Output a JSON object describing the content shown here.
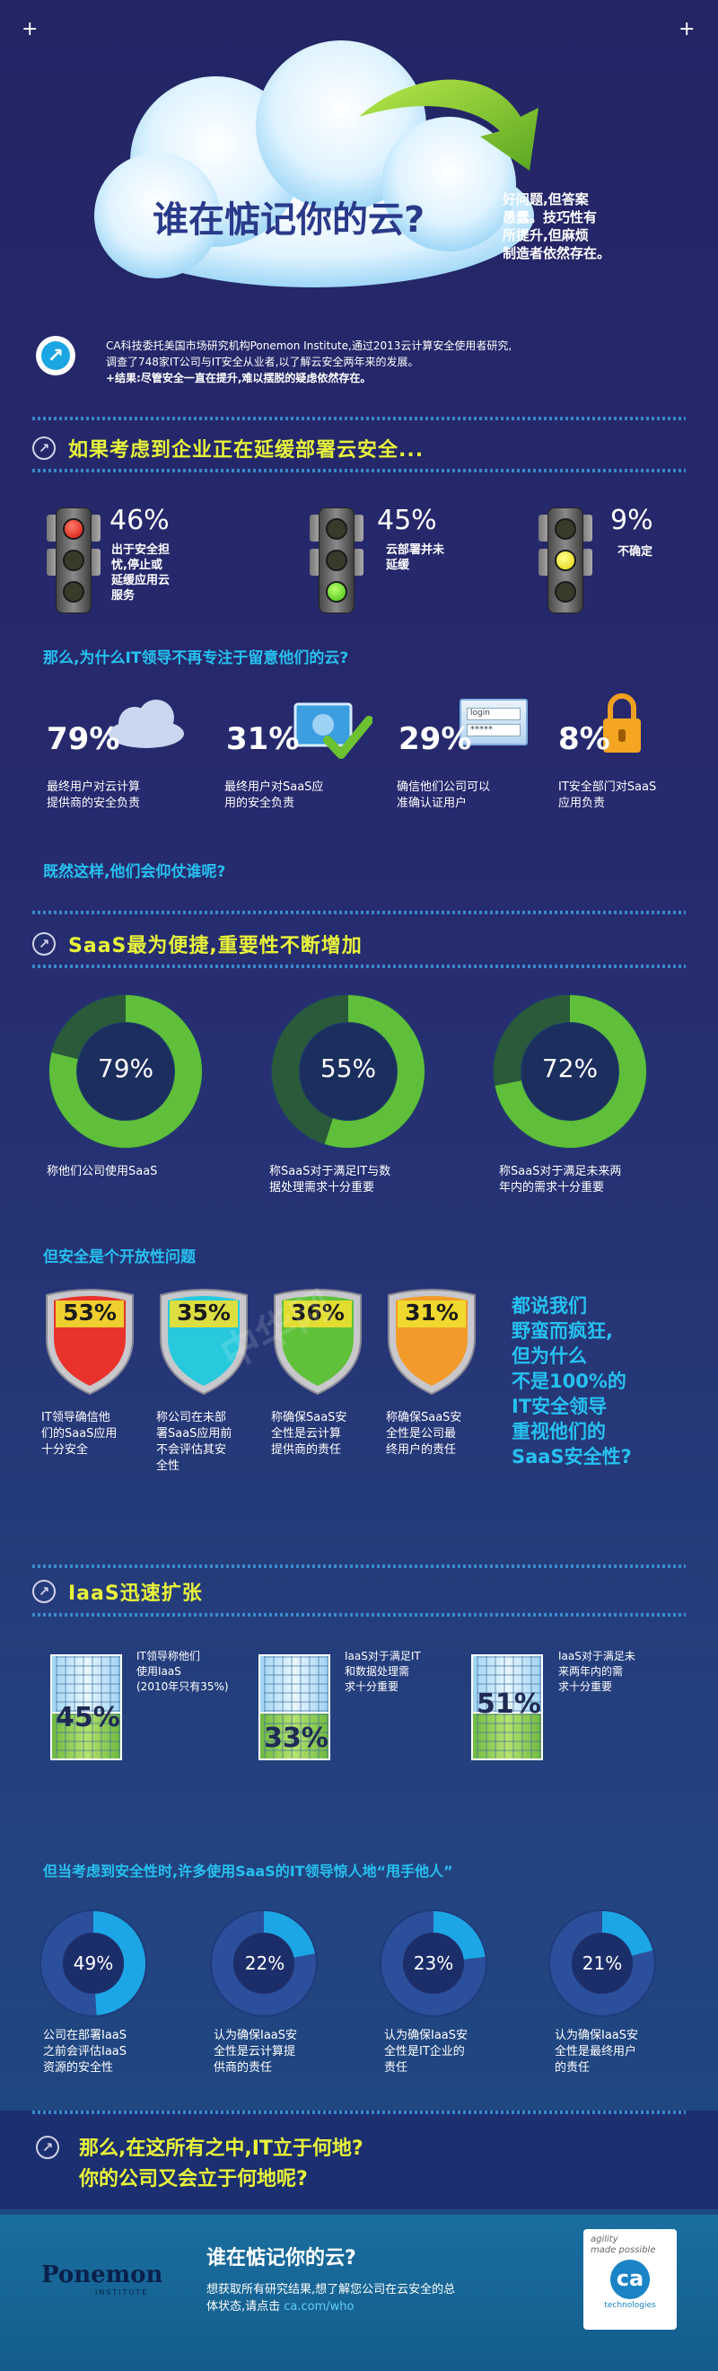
{
  "header": {
    "title": "谁在惦记你的云?",
    "side_text": [
      "好问题,但答案",
      "愚蠢。技巧性有",
      "所提升,但麻烦",
      "制造者依然存在。"
    ],
    "intro_lines": [
      "CA科技委托美国市场研究机构Ponemon Institute,通过2013云计算安全使用者研究,",
      "调查了748家IT公司与IT安全从业者,以了解云安全两年来的发展。"
    ],
    "intro_result": "+结果:尽管安全一直在提升,难以摆脱的疑虑依然存在。"
  },
  "section1": {
    "title": "如果考虑到企业正在延缓部署云安全...",
    "lights": [
      {
        "pct": "46%",
        "desc": [
          "出于安全担",
          "忧,停止或",
          "延缓应用云",
          "服务"
        ]
      },
      {
        "pct": "45%",
        "desc": [
          "云部署并未",
          "延缓"
        ]
      },
      {
        "pct": "9%",
        "desc": [
          "不确定"
        ]
      }
    ],
    "question": "那么,为什么IT领导不再专注于留意他们的云?",
    "stats": [
      {
        "pct": "79%",
        "desc": [
          "最终用户对云计算",
          "提供商的安全负责"
        ]
      },
      {
        "pct": "31%",
        "desc": [
          "最终用户对SaaS应",
          "用的安全负责"
        ]
      },
      {
        "pct": "29%",
        "desc": [
          "确信他们公司可以",
          "准确认证用户"
        ]
      },
      {
        "pct": "8%",
        "desc": [
          "IT安全部门对SaaS",
          "应用负责"
        ]
      }
    ],
    "login_word": "login",
    "password_mask": "*****",
    "question2": "既然这样,他们会仰仗谁呢?"
  },
  "section2": {
    "title": "SaaS最为便捷,重要性不断增加",
    "donuts": [
      {
        "label": "79%",
        "value": 79,
        "desc": [
          "称他们公司使用SaaS"
        ]
      },
      {
        "label": "55%",
        "value": 55,
        "desc": [
          "称SaaS对于满足IT与数",
          "据处理需求十分重要"
        ]
      },
      {
        "label": "72%",
        "value": 72,
        "desc": [
          "称SaaS对于满足未来两",
          "年内的需求十分重要"
        ]
      }
    ],
    "question": "但安全是个开放性问题",
    "shields": [
      {
        "pct": "53%",
        "value": 53,
        "color": "#e8322b",
        "desc": [
          "IT领导确信他",
          "们的SaaS应用",
          "十分安全"
        ]
      },
      {
        "pct": "35%",
        "value": 35,
        "color": "#28c9dd",
        "desc": [
          "称公司在未部",
          "署SaaS应用前",
          "不会评估其安",
          "全性"
        ]
      },
      {
        "pct": "36%",
        "value": 36,
        "color": "#5fc13a",
        "desc": [
          "称确保SaaS安",
          "全性是云计算",
          "提供商的责任"
        ]
      },
      {
        "pct": "31%",
        "value": 31,
        "color": "#f29a2a",
        "desc": [
          "称确保SaaS安",
          "全性是公司最",
          "终用户的责任"
        ]
      }
    ],
    "callout": [
      "都说我们",
      "野蛮而疯狂,",
      "但为什么",
      "不是100%的",
      "IT安全领导",
      "重视他们的",
      "SaaS安全性?"
    ]
  },
  "section3": {
    "title": "IaaS迅速扩张",
    "buildings": [
      {
        "pct": "45%",
        "value": 45,
        "desc": [
          "IT领导称他们",
          "使用IaaS",
          "(2010年只有35%)"
        ]
      },
      {
        "pct": "33%",
        "value": 33,
        "desc": [
          "IaaS对于满足IT",
          "和数据处理需",
          "求十分重要"
        ]
      },
      {
        "pct": "51%",
        "value": 51,
        "desc": [
          "IaaS对于满足未",
          "来两年内的需",
          "求十分重要"
        ]
      }
    ],
    "question": "但当考虑到安全性时,许多使用SaaS的IT领导惊人地“甩手他人”",
    "donuts": [
      {
        "label": "49%",
        "value": 49,
        "desc": [
          "公司在部署IaaS",
          "之前会评估IaaS",
          "资源的安全性"
        ]
      },
      {
        "label": "22%",
        "value": 22,
        "desc": [
          "认为确保IaaS安",
          "全性是云计算提",
          "供商的责任"
        ]
      },
      {
        "label": "23%",
        "value": 23,
        "desc": [
          "认为确保IaaS安",
          "全性是IT企业的",
          "责任"
        ]
      },
      {
        "label": "21%",
        "value": 21,
        "desc": [
          "认为确保IaaS安",
          "全性是最终用户",
          "的责任"
        ]
      }
    ]
  },
  "closing": {
    "line1": "那么,在这所有之中,IT立于何地?",
    "line2": "你的公司又会立于何地呢?"
  },
  "footer": {
    "ponemon_logo": "Ponemon",
    "ponemon_sub": "INSTITUTE",
    "title": "谁在惦记你的云?",
    "body1": "想获取所有研究结果,想了解您公司在云安全的总",
    "body2_prefix": "体状态,请点击",
    "link": "ca.com/who",
    "ca_tag1": "agility",
    "ca_tag2": "made possible",
    "ca_logo": "ca",
    "ca_sub": "technologies"
  },
  "watermark": "中华网",
  "colors": {
    "yellow": "#e8f33a",
    "cyan": "#27c1ef",
    "green": "#5fbf3a",
    "dark_ring": "#1f3f6a",
    "blue_ring": "#1da6e6",
    "navy": "#1b3275"
  }
}
